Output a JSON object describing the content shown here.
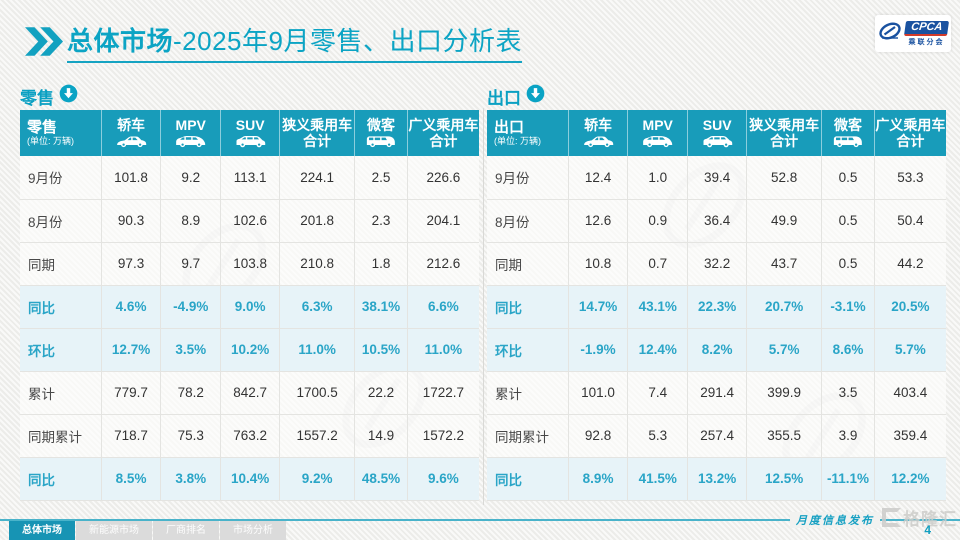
{
  "page": {
    "title_bold": "总体市场",
    "title_rest": "-2025年9月零售、出口分析表",
    "page_number": "4",
    "footer_note": "月度信息发布",
    "watermark_glyph_text": "格隆汇"
  },
  "logo": {
    "name": "CPCA",
    "sub": "乘联分会"
  },
  "colors": {
    "accent_teal": "#149dbc",
    "title_teal": "#0ca4c4",
    "pct_row_bg": "#e7f3f8",
    "pct_text": "#2aa5c7",
    "active_tab": "#1794b4",
    "inactive_tab": "#dbdbdb",
    "logo_blue": "#1a52a0",
    "logo_red": "#d23a2a"
  },
  "columns": [
    {
      "label": "轿车",
      "icon": "sedan-icon"
    },
    {
      "label": "MPV",
      "icon": "mpv-icon"
    },
    {
      "label": "SUV",
      "icon": "suv-icon"
    },
    {
      "label": "狭义乘用车",
      "label2": "合计"
    },
    {
      "label": "微客",
      "icon": "microvan-icon"
    },
    {
      "label": "广义乘用车",
      "label2": "合计"
    }
  ],
  "tables": [
    {
      "id": "retail",
      "section_label": "零售",
      "unit": "(单位: 万辆)",
      "rows": [
        {
          "label": "9月份",
          "type": "num",
          "values": [
            "101.8",
            "9.2",
            "113.1",
            "224.1",
            "2.5",
            "226.6"
          ]
        },
        {
          "label": "8月份",
          "type": "num",
          "values": [
            "90.3",
            "8.9",
            "102.6",
            "201.8",
            "2.3",
            "204.1"
          ]
        },
        {
          "label": "同期",
          "type": "num",
          "values": [
            "97.3",
            "9.7",
            "103.8",
            "210.8",
            "1.8",
            "212.6"
          ]
        },
        {
          "label": "同比",
          "type": "pct",
          "values": [
            "4.6%",
            "-4.9%",
            "9.0%",
            "6.3%",
            "38.1%",
            "6.6%"
          ]
        },
        {
          "label": "环比",
          "type": "pct",
          "values": [
            "12.7%",
            "3.5%",
            "10.2%",
            "11.0%",
            "10.5%",
            "11.0%"
          ]
        },
        {
          "label": "累计",
          "type": "num",
          "values": [
            "779.7",
            "78.2",
            "842.7",
            "1700.5",
            "22.2",
            "1722.7"
          ]
        },
        {
          "label": "同期累计",
          "type": "num",
          "values": [
            "718.7",
            "75.3",
            "763.2",
            "1557.2",
            "14.9",
            "1572.2"
          ]
        },
        {
          "label": "同比",
          "type": "pct",
          "values": [
            "8.5%",
            "3.8%",
            "10.4%",
            "9.2%",
            "48.5%",
            "9.6%"
          ]
        }
      ]
    },
    {
      "id": "export",
      "section_label": "出口",
      "unit": "(单位: 万辆)",
      "rows": [
        {
          "label": "9月份",
          "type": "num",
          "values": [
            "12.4",
            "1.0",
            "39.4",
            "52.8",
            "0.5",
            "53.3"
          ]
        },
        {
          "label": "8月份",
          "type": "num",
          "values": [
            "12.6",
            "0.9",
            "36.4",
            "49.9",
            "0.5",
            "50.4"
          ]
        },
        {
          "label": "同期",
          "type": "num",
          "values": [
            "10.8",
            "0.7",
            "32.2",
            "43.7",
            "0.5",
            "44.2"
          ]
        },
        {
          "label": "同比",
          "type": "pct",
          "values": [
            "14.7%",
            "43.1%",
            "22.3%",
            "20.7%",
            "-3.1%",
            "20.5%"
          ]
        },
        {
          "label": "环比",
          "type": "pct",
          "values": [
            "-1.9%",
            "12.4%",
            "8.2%",
            "5.7%",
            "8.6%",
            "5.7%"
          ]
        },
        {
          "label": "累计",
          "type": "num",
          "values": [
            "101.0",
            "7.4",
            "291.4",
            "399.9",
            "3.5",
            "403.4"
          ]
        },
        {
          "label": "同期累计",
          "type": "num",
          "values": [
            "92.8",
            "5.3",
            "257.4",
            "355.5",
            "3.9",
            "359.4"
          ]
        },
        {
          "label": "同比",
          "type": "pct",
          "values": [
            "8.9%",
            "41.5%",
            "13.2%",
            "12.5%",
            "-11.1%",
            "12.2%"
          ]
        }
      ]
    }
  ],
  "footer_tabs": [
    {
      "label": "总体市场",
      "active": true
    },
    {
      "label": "新能源市场",
      "active": false
    },
    {
      "label": "厂商排名",
      "active": false
    },
    {
      "label": "市场分析",
      "active": false
    }
  ]
}
